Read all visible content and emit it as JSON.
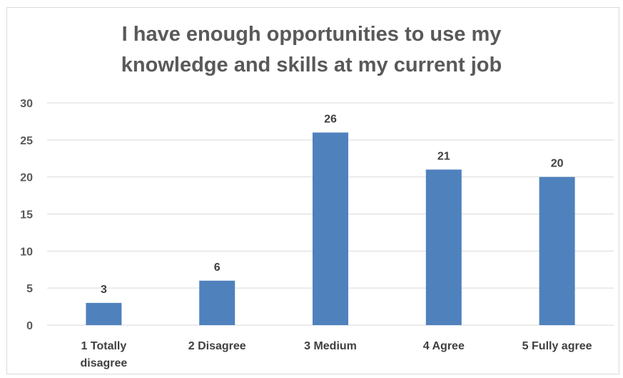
{
  "chart_data": {
    "type": "bar",
    "title_lines": [
      "I have enough opportunities to use my",
      "knowledge and skills at my current job"
    ],
    "categories": [
      [
        "1 Totally",
        "disagree"
      ],
      [
        "2 Disagree"
      ],
      [
        "3 Medium"
      ],
      [
        "4 Agree"
      ],
      [
        "5 Fully agree"
      ]
    ],
    "values": [
      3,
      6,
      26,
      21,
      20
    ],
    "data_labels": [
      "3",
      "6",
      "26",
      "21",
      "20"
    ],
    "ylim": [
      0,
      30
    ],
    "yticks": [
      "0",
      "5",
      "10",
      "15",
      "20",
      "25",
      "30"
    ],
    "grid": true,
    "legend": "none",
    "bar_color": "#4f81bd",
    "grid_color": "#d9d9d9"
  }
}
